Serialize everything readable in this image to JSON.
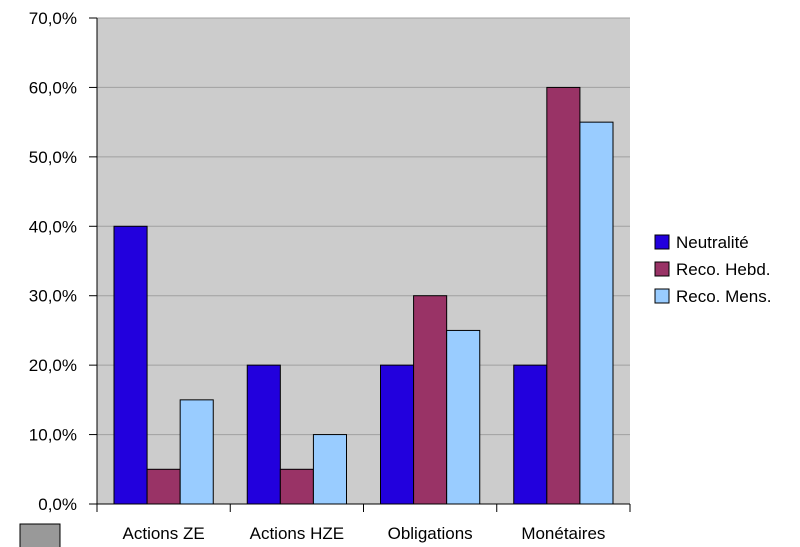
{
  "chart_data": {
    "type": "bar",
    "title": "",
    "xlabel": "",
    "ylabel": "",
    "categories": [
      "Actions ZE",
      "Actions HZE",
      "Obligations",
      "Monétaires"
    ],
    "series": [
      {
        "name": "Neutralité",
        "color": "#2200dd",
        "values": [
          40,
          20,
          20,
          20
        ]
      },
      {
        "name": "Reco. Hebd.",
        "color": "#993366",
        "values": [
          5,
          5,
          30,
          60
        ]
      },
      {
        "name": "Reco. Mens.",
        "color": "#99ccff",
        "values": [
          15,
          10,
          25,
          55
        ]
      }
    ],
    "ylim": [
      0,
      70
    ],
    "yticks": [
      "0,0%",
      "10,0%",
      "20,0%",
      "30,0%",
      "40,0%",
      "50,0%",
      "60,0%",
      "70,0%"
    ],
    "grid": true,
    "legend_position": "right",
    "plot_background": "#cccccc",
    "gridline_color": "#a0a0a0"
  }
}
